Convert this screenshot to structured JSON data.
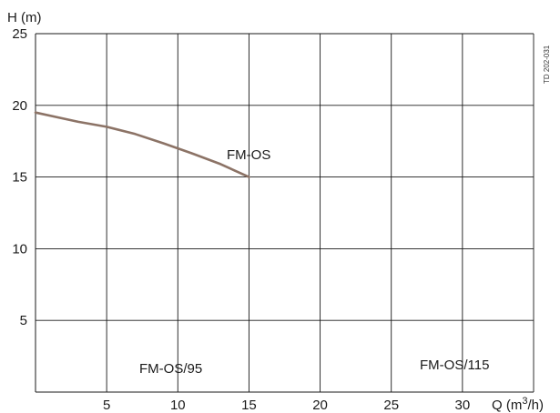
{
  "chart_data": {
    "type": "line",
    "x_axis": {
      "label": "Q (m³/h)",
      "label_main": "Q (m",
      "label_sup": "3",
      "label_end": "/h)",
      "range": [
        0,
        35
      ],
      "ticks": [
        "5",
        "10",
        "15",
        "20",
        "25",
        "30"
      ]
    },
    "y_axis": {
      "label": "H (m)",
      "range": [
        0,
        25
      ],
      "ticks": [
        "5",
        "10",
        "15",
        "20",
        "25"
      ]
    },
    "grid": true,
    "series": [
      {
        "name": "FM-OS",
        "color": "#8c7366",
        "x": [
          0,
          3,
          5,
          7,
          9,
          11,
          13,
          15
        ],
        "y": [
          19.5,
          18.85,
          18.5,
          18.0,
          17.35,
          16.65,
          15.9,
          15.0
        ]
      }
    ],
    "annotations": [
      "FM-OS/95",
      "FM-OS/115"
    ],
    "side_note": "TD 202-031"
  }
}
